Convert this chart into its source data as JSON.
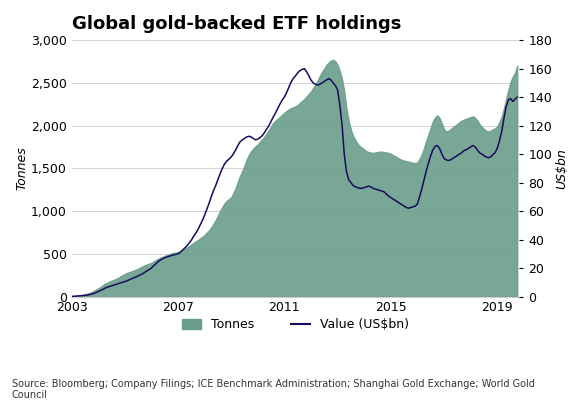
{
  "title": "Global gold-backed ETF holdings",
  "ylabel_left": "Tonnes",
  "ylabel_right": "US$bn",
  "source": "Source: Bloomberg; Company Filings; ICE Benchmark Administration; Shanghai Gold Exchange; World Gold\nCouncil",
  "ylim_left": [
    0,
    3000
  ],
  "ylim_right": [
    0,
    180
  ],
  "yticks_left": [
    0,
    500,
    1000,
    1500,
    2000,
    2500,
    3000
  ],
  "yticks_right": [
    0,
    20,
    40,
    60,
    80,
    100,
    120,
    140,
    160,
    180
  ],
  "xticks": [
    2003,
    2007,
    2011,
    2015,
    2019
  ],
  "area_color": "#6a9e8a",
  "line_color": "#1a0a5e",
  "background_color": "#ffffff",
  "grid_color": "#cccccc",
  "title_fontsize": 13,
  "axis_label_fontsize": 9,
  "tick_fontsize": 9,
  "tonnes_data": [
    [
      2003.0,
      0
    ],
    [
      2003.08,
      5
    ],
    [
      2003.17,
      8
    ],
    [
      2003.25,
      12
    ],
    [
      2003.33,
      15
    ],
    [
      2003.42,
      20
    ],
    [
      2003.5,
      28
    ],
    [
      2003.58,
      35
    ],
    [
      2003.67,
      42
    ],
    [
      2003.75,
      50
    ],
    [
      2003.83,
      65
    ],
    [
      2003.92,
      80
    ],
    [
      2004.0,
      95
    ],
    [
      2004.08,
      110
    ],
    [
      2004.17,
      130
    ],
    [
      2004.25,
      150
    ],
    [
      2004.33,
      160
    ],
    [
      2004.42,
      175
    ],
    [
      2004.5,
      185
    ],
    [
      2004.58,
      195
    ],
    [
      2004.67,
      205
    ],
    [
      2004.75,
      220
    ],
    [
      2004.83,
      235
    ],
    [
      2004.92,
      250
    ],
    [
      2005.0,
      265
    ],
    [
      2005.08,
      275
    ],
    [
      2005.17,
      285
    ],
    [
      2005.25,
      295
    ],
    [
      2005.33,
      305
    ],
    [
      2005.42,
      315
    ],
    [
      2005.5,
      325
    ],
    [
      2005.58,
      340
    ],
    [
      2005.67,
      355
    ],
    [
      2005.75,
      365
    ],
    [
      2005.83,
      375
    ],
    [
      2005.92,
      385
    ],
    [
      2006.0,
      395
    ],
    [
      2006.08,
      410
    ],
    [
      2006.17,
      425
    ],
    [
      2006.25,
      440
    ],
    [
      2006.33,
      455
    ],
    [
      2006.42,
      465
    ],
    [
      2006.5,
      475
    ],
    [
      2006.58,
      485
    ],
    [
      2006.67,
      495
    ],
    [
      2006.75,
      505
    ],
    [
      2006.83,
      510
    ],
    [
      2006.92,
      515
    ],
    [
      2007.0,
      520
    ],
    [
      2007.08,
      530
    ],
    [
      2007.17,
      545
    ],
    [
      2007.25,
      560
    ],
    [
      2007.33,
      575
    ],
    [
      2007.42,
      590
    ],
    [
      2007.5,
      610
    ],
    [
      2007.58,
      625
    ],
    [
      2007.67,
      645
    ],
    [
      2007.75,
      660
    ],
    [
      2007.83,
      680
    ],
    [
      2007.92,
      700
    ],
    [
      2008.0,
      720
    ],
    [
      2008.08,
      745
    ],
    [
      2008.17,
      775
    ],
    [
      2008.25,
      810
    ],
    [
      2008.33,
      850
    ],
    [
      2008.42,
      895
    ],
    [
      2008.5,
      945
    ],
    [
      2008.58,
      1000
    ],
    [
      2008.67,
      1050
    ],
    [
      2008.75,
      1090
    ],
    [
      2008.83,
      1120
    ],
    [
      2008.92,
      1140
    ],
    [
      2009.0,
      1160
    ],
    [
      2009.08,
      1210
    ],
    [
      2009.17,
      1270
    ],
    [
      2009.25,
      1340
    ],
    [
      2009.33,
      1410
    ],
    [
      2009.42,
      1470
    ],
    [
      2009.5,
      1530
    ],
    [
      2009.58,
      1600
    ],
    [
      2009.67,
      1660
    ],
    [
      2009.75,
      1700
    ],
    [
      2009.83,
      1730
    ],
    [
      2009.92,
      1760
    ],
    [
      2010.0,
      1780
    ],
    [
      2010.08,
      1810
    ],
    [
      2010.17,
      1840
    ],
    [
      2010.25,
      1870
    ],
    [
      2010.33,
      1910
    ],
    [
      2010.42,
      1950
    ],
    [
      2010.5,
      1990
    ],
    [
      2010.58,
      2030
    ],
    [
      2010.67,
      2060
    ],
    [
      2010.75,
      2080
    ],
    [
      2010.83,
      2100
    ],
    [
      2010.92,
      2130
    ],
    [
      2011.0,
      2150
    ],
    [
      2011.08,
      2170
    ],
    [
      2011.17,
      2190
    ],
    [
      2011.25,
      2205
    ],
    [
      2011.33,
      2215
    ],
    [
      2011.42,
      2225
    ],
    [
      2011.5,
      2240
    ],
    [
      2011.58,
      2265
    ],
    [
      2011.67,
      2290
    ],
    [
      2011.75,
      2310
    ],
    [
      2011.83,
      2340
    ],
    [
      2011.92,
      2370
    ],
    [
      2012.0,
      2400
    ],
    [
      2012.08,
      2440
    ],
    [
      2012.17,
      2480
    ],
    [
      2012.25,
      2530
    ],
    [
      2012.33,
      2580
    ],
    [
      2012.42,
      2630
    ],
    [
      2012.5,
      2670
    ],
    [
      2012.58,
      2710
    ],
    [
      2012.67,
      2740
    ],
    [
      2012.75,
      2760
    ],
    [
      2012.83,
      2770
    ],
    [
      2012.92,
      2750
    ],
    [
      2013.0,
      2710
    ],
    [
      2013.08,
      2640
    ],
    [
      2013.17,
      2540
    ],
    [
      2013.25,
      2400
    ],
    [
      2013.33,
      2200
    ],
    [
      2013.42,
      2050
    ],
    [
      2013.5,
      1950
    ],
    [
      2013.58,
      1880
    ],
    [
      2013.67,
      1830
    ],
    [
      2013.75,
      1790
    ],
    [
      2013.83,
      1760
    ],
    [
      2013.92,
      1740
    ],
    [
      2014.0,
      1720
    ],
    [
      2014.08,
      1700
    ],
    [
      2014.17,
      1690
    ],
    [
      2014.25,
      1685
    ],
    [
      2014.33,
      1680
    ],
    [
      2014.42,
      1685
    ],
    [
      2014.5,
      1690
    ],
    [
      2014.58,
      1695
    ],
    [
      2014.67,
      1695
    ],
    [
      2014.75,
      1690
    ],
    [
      2014.83,
      1685
    ],
    [
      2014.92,
      1680
    ],
    [
      2015.0,
      1670
    ],
    [
      2015.08,
      1655
    ],
    [
      2015.17,
      1640
    ],
    [
      2015.25,
      1625
    ],
    [
      2015.33,
      1610
    ],
    [
      2015.42,
      1598
    ],
    [
      2015.5,
      1590
    ],
    [
      2015.58,
      1585
    ],
    [
      2015.67,
      1578
    ],
    [
      2015.75,
      1572
    ],
    [
      2015.83,
      1565
    ],
    [
      2015.92,
      1560
    ],
    [
      2016.0,
      1570
    ],
    [
      2016.08,
      1610
    ],
    [
      2016.17,
      1670
    ],
    [
      2016.25,
      1740
    ],
    [
      2016.33,
      1820
    ],
    [
      2016.42,
      1900
    ],
    [
      2016.5,
      1980
    ],
    [
      2016.58,
      2050
    ],
    [
      2016.67,
      2100
    ],
    [
      2016.75,
      2120
    ],
    [
      2016.83,
      2090
    ],
    [
      2016.92,
      2020
    ],
    [
      2017.0,
      1960
    ],
    [
      2017.08,
      1930
    ],
    [
      2017.17,
      1940
    ],
    [
      2017.25,
      1960
    ],
    [
      2017.33,
      1980
    ],
    [
      2017.42,
      2000
    ],
    [
      2017.5,
      2020
    ],
    [
      2017.58,
      2040
    ],
    [
      2017.67,
      2060
    ],
    [
      2017.75,
      2070
    ],
    [
      2017.83,
      2080
    ],
    [
      2017.92,
      2090
    ],
    [
      2018.0,
      2100
    ],
    [
      2018.08,
      2110
    ],
    [
      2018.17,
      2090
    ],
    [
      2018.25,
      2060
    ],
    [
      2018.33,
      2020
    ],
    [
      2018.42,
      1985
    ],
    [
      2018.5,
      1960
    ],
    [
      2018.58,
      1940
    ],
    [
      2018.67,
      1930
    ],
    [
      2018.75,
      1940
    ],
    [
      2018.83,
      1955
    ],
    [
      2018.92,
      1970
    ],
    [
      2019.0,
      1990
    ],
    [
      2019.08,
      2040
    ],
    [
      2019.17,
      2110
    ],
    [
      2019.25,
      2200
    ],
    [
      2019.33,
      2310
    ],
    [
      2019.42,
      2420
    ],
    [
      2019.5,
      2510
    ],
    [
      2019.58,
      2570
    ],
    [
      2019.67,
      2620
    ],
    [
      2019.75,
      2700
    ]
  ],
  "value_data": [
    [
      2003.0,
      0.1
    ],
    [
      2003.08,
      0.2
    ],
    [
      2003.17,
      0.3
    ],
    [
      2003.25,
      0.4
    ],
    [
      2003.33,
      0.5
    ],
    [
      2003.42,
      0.6
    ],
    [
      2003.5,
      0.8
    ],
    [
      2003.58,
      1.0
    ],
    [
      2003.67,
      1.3
    ],
    [
      2003.75,
      1.7
    ],
    [
      2003.83,
      2.2
    ],
    [
      2003.92,
      2.8
    ],
    [
      2004.0,
      3.5
    ],
    [
      2004.08,
      4.2
    ],
    [
      2004.17,
      5.0
    ],
    [
      2004.25,
      5.8
    ],
    [
      2004.33,
      6.5
    ],
    [
      2004.42,
      7.0
    ],
    [
      2004.5,
      7.5
    ],
    [
      2004.58,
      8.0
    ],
    [
      2004.67,
      8.5
    ],
    [
      2004.75,
      9.0
    ],
    [
      2004.83,
      9.5
    ],
    [
      2004.92,
      10.0
    ],
    [
      2005.0,
      10.5
    ],
    [
      2005.08,
      11.0
    ],
    [
      2005.17,
      11.8
    ],
    [
      2005.25,
      12.5
    ],
    [
      2005.33,
      13.0
    ],
    [
      2005.42,
      13.8
    ],
    [
      2005.5,
      14.5
    ],
    [
      2005.58,
      15.2
    ],
    [
      2005.67,
      16.0
    ],
    [
      2005.75,
      17.0
    ],
    [
      2005.83,
      18.0
    ],
    [
      2005.92,
      19.0
    ],
    [
      2006.0,
      20.0
    ],
    [
      2006.08,
      21.5
    ],
    [
      2006.17,
      23.0
    ],
    [
      2006.25,
      24.5
    ],
    [
      2006.33,
      25.5
    ],
    [
      2006.42,
      26.5
    ],
    [
      2006.5,
      27.2
    ],
    [
      2006.58,
      27.8
    ],
    [
      2006.67,
      28.3
    ],
    [
      2006.75,
      28.8
    ],
    [
      2006.83,
      29.2
    ],
    [
      2006.92,
      29.6
    ],
    [
      2007.0,
      30.0
    ],
    [
      2007.08,
      31.0
    ],
    [
      2007.17,
      32.5
    ],
    [
      2007.25,
      34.0
    ],
    [
      2007.33,
      35.5
    ],
    [
      2007.42,
      37.5
    ],
    [
      2007.5,
      39.5
    ],
    [
      2007.58,
      42.0
    ],
    [
      2007.67,
      44.5
    ],
    [
      2007.75,
      47.0
    ],
    [
      2007.83,
      50.0
    ],
    [
      2007.92,
      53.5
    ],
    [
      2008.0,
      57.0
    ],
    [
      2008.08,
      61.0
    ],
    [
      2008.17,
      65.5
    ],
    [
      2008.25,
      70.0
    ],
    [
      2008.33,
      74.0
    ],
    [
      2008.42,
      78.0
    ],
    [
      2008.5,
      82.0
    ],
    [
      2008.58,
      86.0
    ],
    [
      2008.67,
      90.0
    ],
    [
      2008.75,
      93.0
    ],
    [
      2008.83,
      95.0
    ],
    [
      2008.92,
      96.5
    ],
    [
      2009.0,
      98.0
    ],
    [
      2009.08,
      100.0
    ],
    [
      2009.17,
      103.0
    ],
    [
      2009.25,
      106.0
    ],
    [
      2009.33,
      108.5
    ],
    [
      2009.42,
      110.0
    ],
    [
      2009.5,
      111.0
    ],
    [
      2009.58,
      112.0
    ],
    [
      2009.67,
      112.5
    ],
    [
      2009.75,
      112.0
    ],
    [
      2009.83,
      111.0
    ],
    [
      2009.92,
      110.0
    ],
    [
      2010.0,
      110.5
    ],
    [
      2010.08,
      111.5
    ],
    [
      2010.17,
      113.0
    ],
    [
      2010.25,
      115.0
    ],
    [
      2010.33,
      117.5
    ],
    [
      2010.42,
      120.0
    ],
    [
      2010.5,
      123.0
    ],
    [
      2010.58,
      126.0
    ],
    [
      2010.67,
      129.0
    ],
    [
      2010.75,
      132.0
    ],
    [
      2010.83,
      135.0
    ],
    [
      2010.92,
      138.0
    ],
    [
      2011.0,
      140.0
    ],
    [
      2011.08,
      143.0
    ],
    [
      2011.17,
      147.0
    ],
    [
      2011.25,
      150.5
    ],
    [
      2011.33,
      153.0
    ],
    [
      2011.42,
      155.0
    ],
    [
      2011.5,
      157.0
    ],
    [
      2011.58,
      158.5
    ],
    [
      2011.67,
      159.5
    ],
    [
      2011.75,
      160.0
    ],
    [
      2011.83,
      158.0
    ],
    [
      2011.92,
      155.0
    ],
    [
      2012.0,
      152.0
    ],
    [
      2012.08,
      150.0
    ],
    [
      2012.17,
      149.0
    ],
    [
      2012.25,
      148.5
    ],
    [
      2012.33,
      149.0
    ],
    [
      2012.42,
      150.0
    ],
    [
      2012.5,
      151.0
    ],
    [
      2012.58,
      152.0
    ],
    [
      2012.67,
      153.0
    ],
    [
      2012.75,
      152.0
    ],
    [
      2012.83,
      150.0
    ],
    [
      2012.92,
      148.0
    ],
    [
      2013.0,
      145.0
    ],
    [
      2013.08,
      135.0
    ],
    [
      2013.17,
      120.0
    ],
    [
      2013.25,
      100.0
    ],
    [
      2013.33,
      88.0
    ],
    [
      2013.42,
      82.0
    ],
    [
      2013.5,
      80.0
    ],
    [
      2013.58,
      78.0
    ],
    [
      2013.67,
      77.0
    ],
    [
      2013.75,
      76.5
    ],
    [
      2013.83,
      76.0
    ],
    [
      2013.92,
      76.0
    ],
    [
      2014.0,
      76.5
    ],
    [
      2014.08,
      77.0
    ],
    [
      2014.17,
      77.5
    ],
    [
      2014.25,
      77.0
    ],
    [
      2014.33,
      76.0
    ],
    [
      2014.42,
      75.5
    ],
    [
      2014.5,
      75.0
    ],
    [
      2014.58,
      74.5
    ],
    [
      2014.67,
      74.0
    ],
    [
      2014.75,
      73.5
    ],
    [
      2014.83,
      72.0
    ],
    [
      2014.92,
      70.5
    ],
    [
      2015.0,
      69.5
    ],
    [
      2015.08,
      68.5
    ],
    [
      2015.17,
      67.5
    ],
    [
      2015.25,
      66.5
    ],
    [
      2015.33,
      65.5
    ],
    [
      2015.42,
      64.5
    ],
    [
      2015.5,
      63.5
    ],
    [
      2015.58,
      62.5
    ],
    [
      2015.67,
      62.0
    ],
    [
      2015.75,
      62.5
    ],
    [
      2015.83,
      63.0
    ],
    [
      2015.92,
      63.5
    ],
    [
      2016.0,
      65.0
    ],
    [
      2016.08,
      70.0
    ],
    [
      2016.17,
      76.0
    ],
    [
      2016.25,
      82.0
    ],
    [
      2016.33,
      88.0
    ],
    [
      2016.42,
      94.0
    ],
    [
      2016.5,
      99.0
    ],
    [
      2016.58,
      103.0
    ],
    [
      2016.67,
      105.5
    ],
    [
      2016.75,
      106.0
    ],
    [
      2016.83,
      104.0
    ],
    [
      2016.92,
      100.0
    ],
    [
      2017.0,
      97.0
    ],
    [
      2017.08,
      96.0
    ],
    [
      2017.17,
      95.5
    ],
    [
      2017.25,
      96.0
    ],
    [
      2017.33,
      97.0
    ],
    [
      2017.42,
      98.0
    ],
    [
      2017.5,
      99.0
    ],
    [
      2017.58,
      100.0
    ],
    [
      2017.67,
      101.0
    ],
    [
      2017.75,
      102.5
    ],
    [
      2017.83,
      103.0
    ],
    [
      2017.92,
      104.0
    ],
    [
      2018.0,
      105.0
    ],
    [
      2018.08,
      106.0
    ],
    [
      2018.17,
      105.0
    ],
    [
      2018.25,
      103.0
    ],
    [
      2018.33,
      101.0
    ],
    [
      2018.42,
      100.0
    ],
    [
      2018.5,
      99.0
    ],
    [
      2018.58,
      98.0
    ],
    [
      2018.67,
      97.5
    ],
    [
      2018.75,
      98.0
    ],
    [
      2018.83,
      99.5
    ],
    [
      2018.92,
      101.0
    ],
    [
      2019.0,
      104.0
    ],
    [
      2019.08,
      109.0
    ],
    [
      2019.17,
      116.0
    ],
    [
      2019.25,
      125.0
    ],
    [
      2019.33,
      133.0
    ],
    [
      2019.42,
      138.0
    ],
    [
      2019.5,
      139.0
    ],
    [
      2019.58,
      137.0
    ],
    [
      2019.67,
      138.5
    ],
    [
      2019.75,
      140.0
    ]
  ]
}
